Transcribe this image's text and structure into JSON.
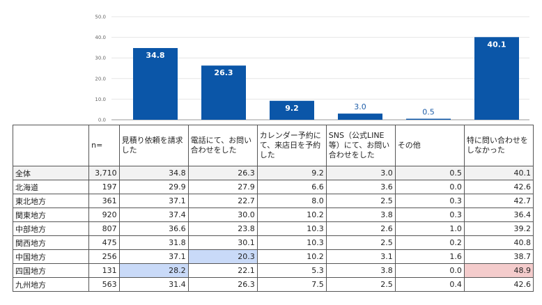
{
  "chart_data": {
    "type": "bar",
    "categories": [
      "見積り依頼を請求した",
      "電話にて、お問い合わせをした",
      "カレンダー予約にて、来店日を予約した",
      "SNS（公式LINE等）にて、お問い合わせをした",
      "その他",
      "特に問い合わせをしなかった"
    ],
    "values": [
      34.8,
      26.3,
      9.2,
      3.0,
      0.5,
      40.1
    ],
    "value_labels": [
      "34.8",
      "26.3",
      "9.2",
      "3.0",
      "0.5",
      "40.1"
    ],
    "ylim": [
      0,
      50
    ],
    "yticks": [
      "0.0",
      "10.0",
      "20.0",
      "30.0",
      "40.0",
      "50.0"
    ],
    "bar_color": "#0b56a8"
  },
  "table": {
    "headers": [
      "",
      "n=",
      "見積り依頼を請求した",
      "電話にて、お問い合わせをした",
      "カレンダー予約にて、来店日を予約した",
      "SNS（公式LINE等）にて、お問い合わせをした",
      "その他",
      "特に問い合わせをしなかった"
    ],
    "rows": [
      {
        "region": "全体",
        "n": "3,710",
        "values": [
          "34.8",
          "26.3",
          "9.2",
          "3.0",
          "0.5",
          "40.1"
        ]
      },
      {
        "region": "北海道",
        "n": "197",
        "values": [
          "29.9",
          "27.9",
          "6.6",
          "3.6",
          "0.0",
          "42.6"
        ]
      },
      {
        "region": "東北地方",
        "n": "361",
        "values": [
          "37.1",
          "22.7",
          "8.0",
          "2.5",
          "0.3",
          "42.7"
        ]
      },
      {
        "region": "関東地方",
        "n": "920",
        "values": [
          "37.4",
          "30.0",
          "10.2",
          "3.8",
          "0.3",
          "36.4"
        ]
      },
      {
        "region": "中部地方",
        "n": "807",
        "values": [
          "36.6",
          "23.8",
          "10.3",
          "2.6",
          "1.0",
          "39.2"
        ]
      },
      {
        "region": "関西地方",
        "n": "475",
        "values": [
          "31.8",
          "30.1",
          "10.3",
          "2.5",
          "0.2",
          "40.8"
        ]
      },
      {
        "region": "中国地方",
        "n": "256",
        "values": [
          "37.1",
          "20.3",
          "10.2",
          "3.1",
          "1.6",
          "38.7"
        ]
      },
      {
        "region": "四国地方",
        "n": "131",
        "values": [
          "28.2",
          "22.1",
          "5.3",
          "3.8",
          "0.0",
          "48.9"
        ]
      },
      {
        "region": "九州地方",
        "n": "563",
        "values": [
          "31.4",
          "26.3",
          "7.5",
          "2.5",
          "0.4",
          "42.6"
        ]
      }
    ],
    "highlights": {
      "blue": [
        [
          6,
          1
        ],
        [
          7,
          0
        ]
      ],
      "red": [
        [
          7,
          5
        ]
      ]
    },
    "colors": {
      "blue": "#c9daf8",
      "red": "#f4cccc",
      "total_row": "#f2f2f2"
    }
  }
}
